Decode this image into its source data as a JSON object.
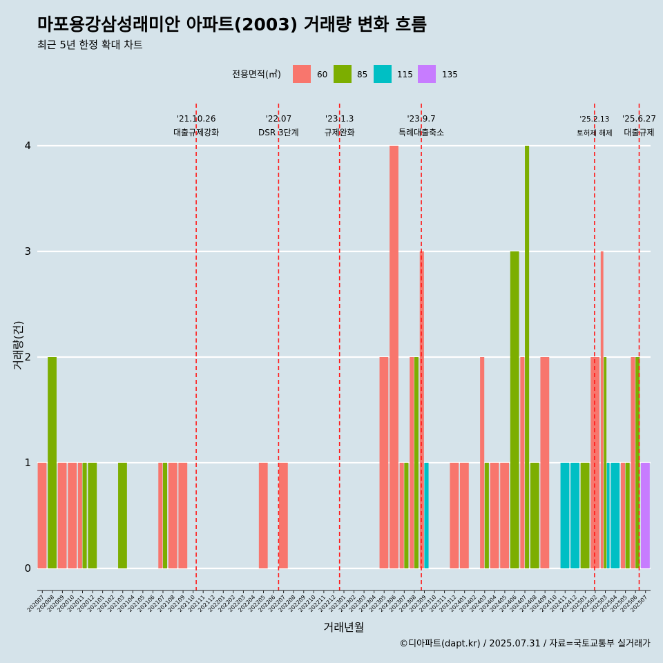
{
  "title": "마포용강삼성래미안 아파트(2003) 거래량 변화 흐름",
  "subtitle": "최근 5년 한정 확대 차트",
  "caption": "©디아파트(dapt.kr) / 2025.07.31 / 자료=국토교통부 실거래가",
  "legend": {
    "title": "전용면적(㎡)",
    "items": [
      {
        "label": "60",
        "color": "#F8766D"
      },
      {
        "label": "85",
        "color": "#7CAE00"
      },
      {
        "label": "115",
        "color": "#00BFC4"
      },
      {
        "label": "135",
        "color": "#C77CFF"
      }
    ]
  },
  "chart_data": {
    "type": "bar",
    "xlabel": "거래년월",
    "ylabel": "거래량(건)",
    "ylim": [
      0,
      4
    ],
    "yticks": [
      0,
      1,
      2,
      3,
      4
    ],
    "grid": true,
    "legend_position": "top",
    "categories": [
      "202007",
      "202008",
      "202009",
      "202010",
      "202011",
      "202012",
      "202101",
      "202102",
      "202103",
      "202104",
      "202105",
      "202106",
      "202107",
      "202108",
      "202109",
      "202110",
      "202111",
      "202112",
      "202201",
      "202202",
      "202203",
      "202204",
      "202205",
      "202206",
      "202207",
      "202208",
      "202209",
      "202210",
      "202211",
      "202212",
      "202301",
      "202302",
      "202303",
      "202304",
      "202305",
      "202306",
      "202307",
      "202308",
      "202309",
      "202310",
      "202311",
      "202312",
      "202401",
      "202402",
      "202403",
      "202404",
      "202405",
      "202406",
      "202407",
      "202408",
      "202409",
      "202410",
      "202411",
      "202412",
      "202501",
      "202502",
      "202503",
      "202504",
      "202505",
      "202506",
      "202507"
    ],
    "series": [
      {
        "name": "60",
        "values": [
          1,
          0,
          1,
          1,
          1,
          0,
          0,
          0,
          0,
          0,
          0,
          0,
          1,
          1,
          1,
          0,
          0,
          0,
          0,
          0,
          0,
          0,
          1,
          0,
          1,
          0,
          0,
          0,
          0,
          0,
          0,
          0,
          0,
          0,
          2,
          4,
          1,
          2,
          3,
          0,
          0,
          1,
          1,
          0,
          2,
          1,
          1,
          0,
          2,
          0,
          2,
          0,
          0,
          0,
          0,
          2,
          3,
          0,
          1,
          2,
          0
        ]
      },
      {
        "name": "85",
        "values": [
          0,
          2,
          0,
          0,
          1,
          1,
          0,
          0,
          1,
          0,
          0,
          0,
          1,
          0,
          0,
          0,
          0,
          0,
          0,
          0,
          0,
          0,
          0,
          0,
          0,
          0,
          0,
          0,
          0,
          0,
          0,
          0,
          0,
          0,
          0,
          0,
          1,
          2,
          0,
          0,
          0,
          0,
          0,
          0,
          1,
          0,
          0,
          3,
          4,
          1,
          0,
          0,
          0,
          0,
          1,
          0,
          2,
          0,
          1,
          2,
          0
        ]
      },
      {
        "name": "115",
        "values": [
          0,
          0,
          0,
          0,
          0,
          0,
          0,
          0,
          0,
          0,
          0,
          0,
          0,
          0,
          0,
          0,
          0,
          0,
          0,
          0,
          0,
          0,
          0,
          0,
          0,
          0,
          0,
          0,
          0,
          0,
          0,
          0,
          0,
          0,
          0,
          0,
          0,
          0,
          1,
          0,
          0,
          0,
          0,
          0,
          0,
          0,
          0,
          0,
          0,
          0,
          0,
          0,
          1,
          1,
          0,
          0,
          1,
          1,
          0,
          0,
          0
        ]
      },
      {
        "name": "135",
        "values": [
          0,
          0,
          0,
          0,
          0,
          0,
          0,
          0,
          0,
          0,
          0,
          0,
          0,
          0,
          0,
          0,
          0,
          0,
          0,
          0,
          0,
          0,
          0,
          0,
          0,
          0,
          0,
          0,
          0,
          0,
          0,
          0,
          0,
          0,
          0,
          0,
          0,
          0,
          0,
          0,
          0,
          0,
          0,
          0,
          0,
          0,
          0,
          0,
          0,
          0,
          0,
          0,
          0,
          0,
          0,
          0,
          0,
          0,
          0,
          0,
          1
        ]
      }
    ],
    "events": [
      {
        "date": "2021-10-26",
        "line1": "'21.10.26",
        "line2": "대출규제강화"
      },
      {
        "date": "2022-07-01",
        "line1": "'22.07",
        "line2": "DSR 3단계"
      },
      {
        "date": "2023-01-03",
        "line1": "'23.1.3",
        "line2": "규제완화"
      },
      {
        "date": "2023-09-07",
        "line1": "'23.9.7",
        "line2": "특례대출축소"
      },
      {
        "date": "2025-02-13",
        "line1": "'25.2.13",
        "line2": "토허제 해제"
      },
      {
        "date": "2025-06-27",
        "line1": "'25.6.27",
        "line2": "대출규제"
      }
    ]
  }
}
